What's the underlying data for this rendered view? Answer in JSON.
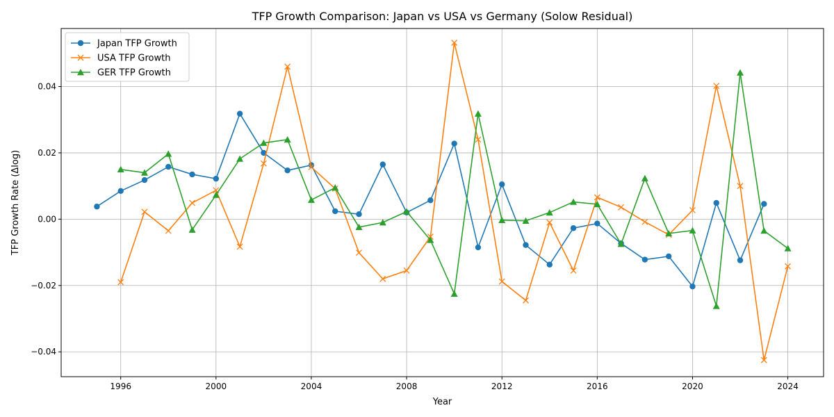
{
  "chart_data": {
    "type": "line",
    "title": "TFP Growth Comparison: Japan vs USA vs Germany (Solow Residual)",
    "xlabel": "Year",
    "ylabel": "TFP Growth Rate (Δlog)",
    "xlim": [
      1993.5,
      2025.5
    ],
    "ylim": [
      -0.0475,
      0.0575
    ],
    "xticks": [
      1996,
      2000,
      2004,
      2008,
      2012,
      2016,
      2020,
      2024
    ],
    "xtick_labels": [
      "1996",
      "2000",
      "2004",
      "2008",
      "2012",
      "2016",
      "2020",
      "2024"
    ],
    "yticks": [
      -0.04,
      -0.02,
      0.0,
      0.02,
      0.04
    ],
    "ytick_labels": [
      "−0.04",
      "−0.02",
      "0.00",
      "0.02",
      "0.04"
    ],
    "grid": true,
    "legend_position": "top-left",
    "series": [
      {
        "name": "Japan TFP Growth",
        "color": "#1f77b4",
        "marker": "circle",
        "x": [
          1995,
          1996,
          1997,
          1998,
          1999,
          2000,
          2001,
          2002,
          2003,
          2004,
          2005,
          2006,
          2007,
          2008,
          2009,
          2010,
          2011,
          2012,
          2013,
          2014,
          2015,
          2016,
          2017,
          2018,
          2019,
          2020,
          2021,
          2022,
          2023
        ],
        "values": [
          0.0038,
          0.0085,
          0.0118,
          0.0158,
          0.0135,
          0.0122,
          0.0318,
          0.02,
          0.0147,
          0.0163,
          0.0024,
          0.0015,
          0.0165,
          0.002,
          0.0057,
          0.0228,
          -0.0085,
          0.0105,
          -0.0078,
          -0.0137,
          -0.0027,
          -0.0013,
          -0.0073,
          -0.0122,
          -0.0112,
          -0.0203,
          0.0049,
          -0.0124,
          0.0046
        ]
      },
      {
        "name": "USA TFP Growth",
        "color": "#ff7f0e",
        "marker": "x",
        "x": [
          1996,
          1997,
          1998,
          1999,
          2000,
          2001,
          2002,
          2003,
          2004,
          2005,
          2006,
          2007,
          2008,
          2009,
          2010,
          2011,
          2012,
          2013,
          2014,
          2015,
          2016,
          2017,
          2018,
          2019,
          2020,
          2021,
          2022,
          2023,
          2024
        ],
        "values": [
          -0.019,
          0.0022,
          -0.0035,
          0.0049,
          0.0087,
          -0.0083,
          0.0168,
          0.046,
          0.0157,
          0.0092,
          -0.0101,
          -0.018,
          -0.0155,
          -0.0053,
          0.0532,
          0.024,
          -0.0188,
          -0.0245,
          -0.001,
          -0.0155,
          0.0066,
          0.0036,
          -0.0008,
          -0.0047,
          0.0027,
          0.0402,
          0.01,
          -0.0425,
          -0.0142
        ]
      },
      {
        "name": "GER TFP Growth",
        "color": "#2ca02c",
        "marker": "triangle",
        "x": [
          1996,
          1997,
          1998,
          1999,
          2000,
          2001,
          2002,
          2003,
          2004,
          2005,
          2006,
          2007,
          2008,
          2009,
          2010,
          2011,
          2012,
          2013,
          2014,
          2015,
          2016,
          2017,
          2018,
          2019,
          2020,
          2021,
          2022,
          2023,
          2024
        ],
        "values": [
          0.015,
          0.014,
          0.0197,
          -0.0032,
          0.0073,
          0.0182,
          0.023,
          0.024,
          0.0058,
          0.0095,
          -0.0024,
          -0.001,
          0.0023,
          -0.0063,
          -0.0225,
          0.0318,
          -0.0003,
          -0.0005,
          0.002,
          0.0052,
          0.0045,
          -0.0075,
          0.0123,
          -0.0043,
          -0.0034,
          -0.0262,
          0.0442,
          -0.0035,
          -0.0088
        ]
      }
    ]
  }
}
